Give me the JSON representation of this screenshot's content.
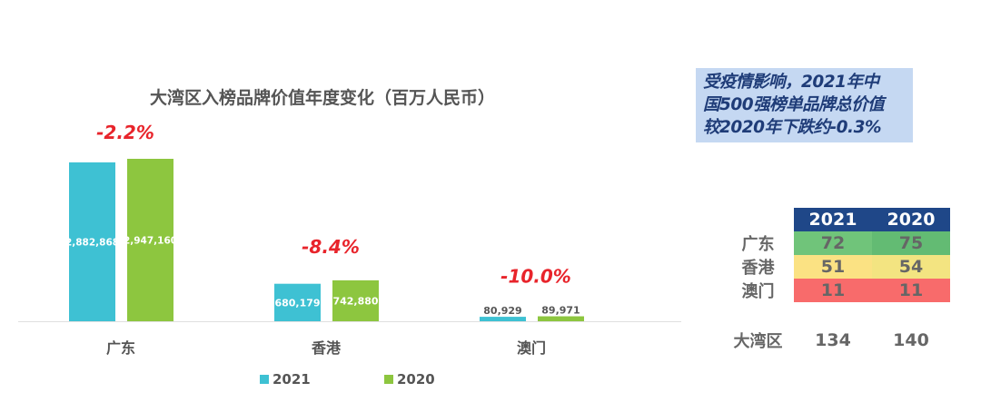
{
  "chart_data": {
    "type": "bar",
    "title": "大湾区入榜品牌价值年度变化（百万人民币）",
    "categories": [
      "广东",
      "香港",
      "澳门"
    ],
    "series": [
      {
        "name": "2021",
        "color": "#3ec1d3",
        "values": [
          2882868,
          680179,
          80929
        ]
      },
      {
        "name": "2020",
        "color": "#8dc63f",
        "values": [
          2947160,
          742880,
          89971
        ]
      }
    ],
    "data_labels": [
      [
        "2,882,868",
        "680,179",
        "80,929"
      ],
      [
        "2,947,160",
        "742,880",
        "89,971"
      ]
    ],
    "change_labels": [
      "-2.2%",
      "-8.4%",
      "-10.0%"
    ],
    "change_color": "#e8242b",
    "legend": "bottom",
    "grid": false
  },
  "callout": {
    "lines": [
      "受疫情影响，2021年中",
      "国500强榜单品牌总价值",
      "较2020年下跌约-0.3%"
    ]
  },
  "table": {
    "headers": [
      "2021",
      "2020"
    ],
    "rows": [
      {
        "label": "广东",
        "values": [
          "72",
          "75"
        ],
        "colors": [
          "#70c47a",
          "#63bb73"
        ]
      },
      {
        "label": "香港",
        "values": [
          "51",
          "54"
        ],
        "colors": [
          "#fbe283",
          "#f3e481"
        ]
      },
      {
        "label": "澳门",
        "values": [
          "11",
          "11"
        ],
        "colors": [
          "#f86b6b",
          "#f86b6b"
        ]
      }
    ],
    "total": {
      "label": "大湾区",
      "values": [
        "134",
        "140"
      ]
    }
  }
}
